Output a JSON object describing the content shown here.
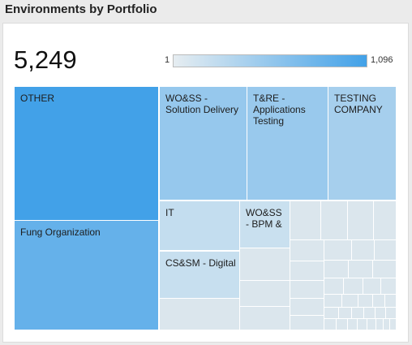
{
  "widget": {
    "title": "Environments by Portfolio",
    "total": "5,249",
    "legend_min": "1",
    "legend_max": "1,096",
    "color_low": "#e6edf1",
    "color_high": "#42a1e8"
  },
  "chart_data": {
    "type": "treemap",
    "title": "Environments by Portfolio",
    "total": 5249,
    "color_scale": {
      "min": 1,
      "max": 1096
    },
    "items": [
      {
        "label": "OTHER",
        "value": 1096
      },
      {
        "label": "Fung Organization",
        "value": 861
      },
      {
        "label": "WO&SS - Solution Delivery",
        "value": 534
      },
      {
        "label": "T&RE - Applications Testing",
        "value": 513
      },
      {
        "label": "TESTING COMPANY",
        "value": 428
      },
      {
        "label": "IT",
        "value": 232
      },
      {
        "label": "CS&SM - Digital",
        "value": 206
      },
      {
        "label": "WO&SS - BPM &",
        "value": 193
      }
    ]
  }
}
